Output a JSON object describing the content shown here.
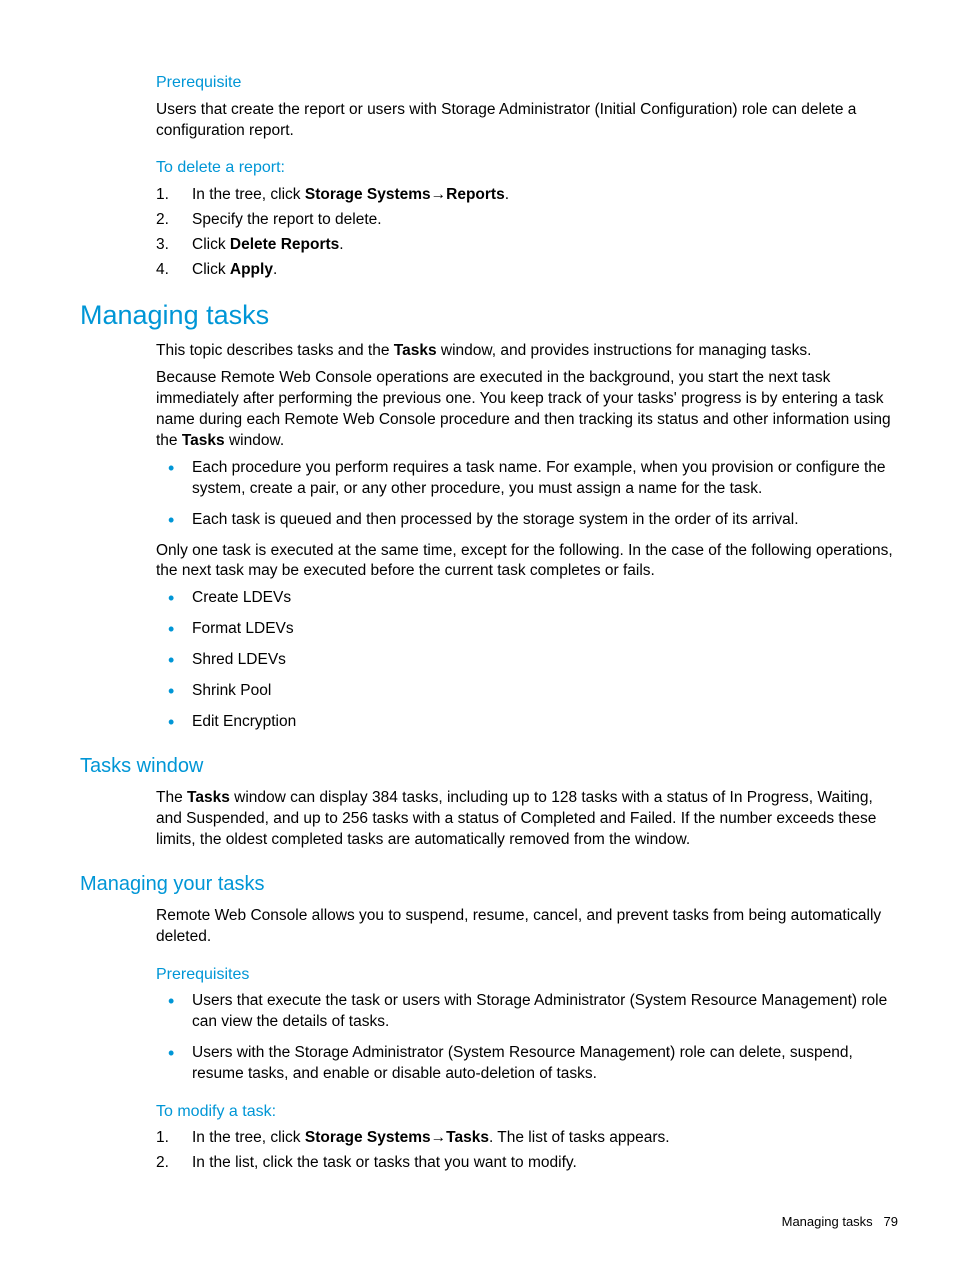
{
  "colors": {
    "heading": "#0096d6",
    "bullet": "#0096d6",
    "text": "#000000",
    "background": "#ffffff"
  },
  "typography": {
    "body_size_pt": 11.5,
    "h_small_size_pt": 12,
    "h_medium_size_pt": 15,
    "h_large_size_pt": 20,
    "font_family": "Futura / sans-serif"
  },
  "section_prereq": {
    "heading": "Prerequisite",
    "body": "Users that create the report or users with Storage Administrator (Initial Configuration) role can delete a configuration report."
  },
  "section_delete": {
    "heading": "To delete a report:",
    "steps": [
      {
        "pre": "In the tree, click ",
        "bold1": "Storage Systems",
        "arrow": "→",
        "bold2": "Reports",
        "post": "."
      },
      {
        "plain": "Specify the report to delete."
      },
      {
        "pre": "Click ",
        "bold1": "Delete Reports",
        "post": "."
      },
      {
        "pre": "Click ",
        "bold1": "Apply",
        "post": "."
      }
    ]
  },
  "section_managing": {
    "heading": "Managing tasks",
    "p1_pre": "This topic describes tasks and the ",
    "p1_bold": "Tasks",
    "p1_post": " window, and provides instructions for managing tasks.",
    "p2_pre": "Because Remote Web Console operations are executed in the background, you start the next task immediately after performing the previous one. You keep track of your tasks' progress is by entering a task name during each Remote Web Console procedure and then tracking its status and other information using the ",
    "p2_bold": "Tasks",
    "p2_post": " window.",
    "bullets1": [
      "Each procedure you perform requires a task name. For example, when you provision or configure the system, create a pair, or any other procedure, you must assign a name for the task.",
      "Each task is queued and then processed by the storage system in the order of its arrival."
    ],
    "p3": "Only one task is executed at the same time, except for the following. In the case of the following operations, the next task may be executed before the current task completes or fails.",
    "bullets2": [
      "Create LDEVs",
      "Format LDEVs",
      "Shred LDEVs",
      "Shrink Pool",
      "Edit Encryption"
    ]
  },
  "section_tasks_window": {
    "heading": "Tasks window",
    "p_pre": "The ",
    "p_bold": "Tasks",
    "p_post": " window can display 384 tasks, including up to 128 tasks with a status of In Progress, Waiting, and Suspended, and up to 256 tasks with a status of Completed and Failed. If the number exceeds these limits, the oldest completed tasks are automatically removed from the window."
  },
  "section_managing_your": {
    "heading": "Managing your tasks",
    "p1": "Remote Web Console allows you to suspend, resume, cancel, and prevent tasks from being automatically deleted.",
    "prereq_heading": "Prerequisites",
    "prereq_bullets": [
      "Users that execute the task or users with Storage Administrator (System Resource Management) role can view the details of tasks.",
      "Users with the Storage Administrator (System Resource Management) role can delete, suspend, resume tasks, and enable or disable auto-deletion of tasks."
    ],
    "modify_heading": "To modify a task:",
    "modify_steps": [
      {
        "pre": "In the tree, click ",
        "bold1": "Storage Systems",
        "arrow": "→",
        "bold2": "Tasks",
        "post": ". The list of tasks appears."
      },
      {
        "plain": "In the list, click the task or tasks that you want to modify."
      }
    ]
  },
  "footer": {
    "label": "Managing tasks",
    "page": "79"
  }
}
